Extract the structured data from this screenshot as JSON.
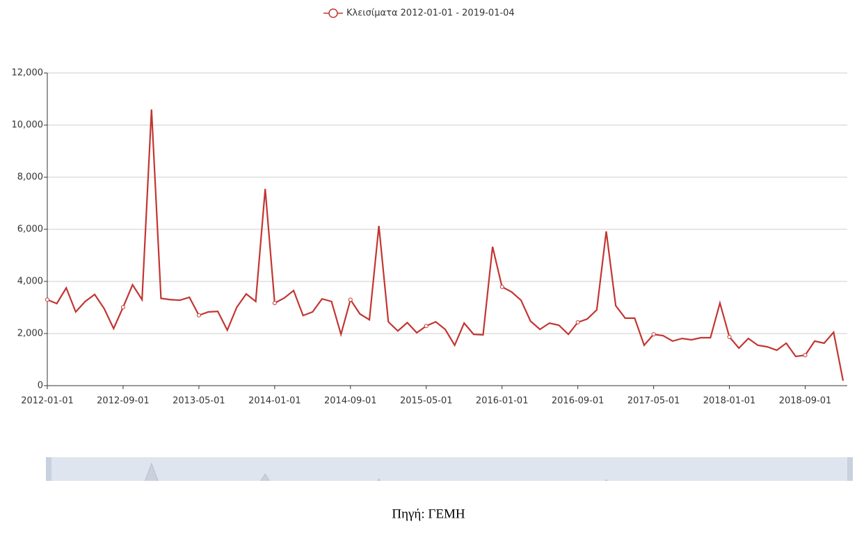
{
  "chart_data": {
    "type": "line",
    "categories": [
      "2012-01-01",
      null,
      null,
      null,
      null,
      null,
      null,
      null,
      "2012-09-01",
      null,
      null,
      null,
      null,
      null,
      null,
      null,
      "2013-05-01",
      null,
      null,
      null,
      null,
      null,
      null,
      null,
      "2014-01-01",
      null,
      null,
      null,
      null,
      null,
      null,
      null,
      "2014-09-01",
      null,
      null,
      null,
      null,
      null,
      null,
      null,
      "2015-05-01",
      null,
      null,
      null,
      null,
      null,
      null,
      null,
      "2016-01-01",
      null,
      null,
      null,
      null,
      null,
      null,
      null,
      "2016-09-01",
      null,
      null,
      null,
      null,
      null,
      null,
      null,
      "2017-05-01",
      null,
      null,
      null,
      null,
      null,
      null,
      null,
      "2018-01-01",
      null,
      null,
      null,
      null,
      null,
      null,
      null,
      "2018-09-01",
      null,
      null,
      null,
      null
    ],
    "series": [
      {
        "name": "Κλεισίματα 2012-01-01 - 2019-01-04",
        "color": "#c23531",
        "values": [
          3300,
          3150,
          3750,
          2830,
          3230,
          3500,
          2960,
          2190,
          3010,
          3870,
          3300,
          10600,
          3350,
          3300,
          3280,
          3390,
          2700,
          2830,
          2850,
          2130,
          3010,
          3520,
          3230,
          7550,
          3170,
          3360,
          3650,
          2690,
          2830,
          3330,
          3230,
          1970,
          3300,
          2750,
          2530,
          6130,
          2450,
          2100,
          2420,
          2030,
          2290,
          2450,
          2160,
          1550,
          2400,
          1970,
          1950,
          5330,
          3790,
          3600,
          3280,
          2480,
          2160,
          2400,
          2320,
          1970,
          2430,
          2560,
          2910,
          5920,
          3070,
          2590,
          2590,
          1550,
          1970,
          1920,
          1710,
          1810,
          1760,
          1840,
          1840,
          3170,
          1870,
          1440,
          1810,
          1550,
          1490,
          1360,
          1630,
          1120,
          1170,
          1710,
          1630,
          2050,
          190
        ]
      }
    ],
    "ylim": [
      0,
      12000
    ],
    "yticks": [
      0,
      {
        "value": 2000,
        "label": "2,000"
      },
      {
        "value": 4000,
        "label": "4,000"
      },
      {
        "value": 6000,
        "label": "6,000"
      },
      {
        "value": 8000,
        "label": "8,000"
      },
      {
        "value": 10000,
        "label": "10,000"
      },
      {
        "value": 12000,
        "label": "12,000"
      }
    ],
    "grid": true,
    "legend": "top",
    "source": "Πηγή: ΓΕΜΗ"
  }
}
